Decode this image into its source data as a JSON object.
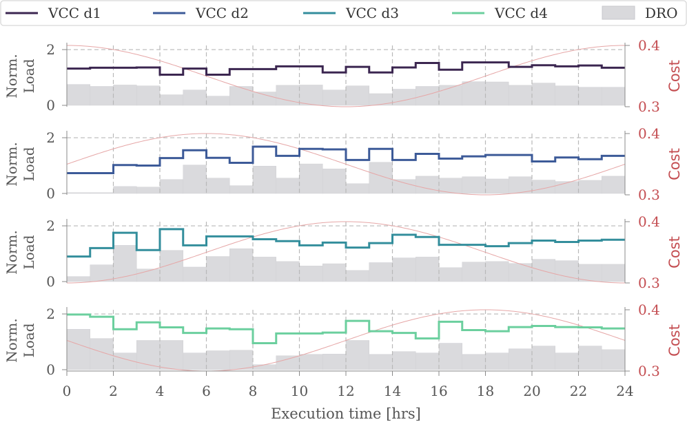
{
  "chart_data": {
    "type": "step",
    "xlabel": "Execution time [hrs]",
    "x_ticks": [
      0,
      2,
      4,
      6,
      8,
      10,
      12,
      14,
      16,
      18,
      20,
      22,
      24
    ],
    "xlim": [
      0,
      24
    ],
    "ylabel_left": [
      "Norm.",
      "Load"
    ],
    "ylabel_right": "Cost",
    "ylim_left": [
      0,
      2.1
    ],
    "y_ticks_left": [
      0,
      2
    ],
    "ylim_right": [
      0.3,
      0.4
    ],
    "y_ticks_right": [
      "0.3",
      "0.4"
    ],
    "legend": [
      {
        "label": "VCC d1",
        "color": "#3b2650",
        "kind": "line"
      },
      {
        "label": "VCC d2",
        "color": "#3c5a98",
        "kind": "line"
      },
      {
        "label": "VCC d3",
        "color": "#338e9c",
        "kind": "line"
      },
      {
        "label": "VCC d4",
        "color": "#6bcf9e",
        "kind": "line"
      },
      {
        "label": "DRO",
        "color": "#d9d9dc",
        "kind": "patch"
      }
    ],
    "cost_color": "#e6a6a6",
    "panels": [
      {
        "name": "VCC d1",
        "color": "#3b2650",
        "vcc": [
          1.32,
          1.35,
          1.35,
          1.36,
          1.1,
          1.32,
          1.1,
          1.3,
          1.3,
          1.4,
          1.4,
          1.18,
          1.38,
          1.18,
          1.36,
          1.52,
          1.28,
          1.54,
          1.54,
          1.38,
          1.44,
          1.4,
          1.43,
          1.35
        ],
        "dro": [
          0.75,
          0.68,
          0.73,
          0.7,
          0.38,
          0.55,
          0.33,
          0.68,
          0.48,
          0.72,
          0.73,
          0.55,
          0.7,
          0.42,
          0.58,
          0.68,
          0.72,
          0.85,
          0.84,
          0.72,
          0.8,
          0.7,
          0.65,
          0.65
        ],
        "cost": {
          "base": 0.35,
          "amp": 0.05,
          "phase": 0
        }
      },
      {
        "name": "VCC d2",
        "color": "#3c5a98",
        "vcc": [
          0.73,
          0.73,
          1.02,
          1.0,
          1.27,
          1.55,
          1.28,
          1.1,
          1.68,
          1.35,
          1.6,
          1.58,
          1.2,
          1.6,
          1.2,
          1.42,
          1.25,
          1.33,
          1.38,
          1.38,
          1.15,
          1.29,
          1.23,
          1.35
        ],
        "dro": [
          0.03,
          0.03,
          0.25,
          0.23,
          0.5,
          1.02,
          0.55,
          0.28,
          0.98,
          0.55,
          1.06,
          0.88,
          0.35,
          1.12,
          0.5,
          0.62,
          0.55,
          0.6,
          0.52,
          0.6,
          0.48,
          0.43,
          0.47,
          0.62
        ],
        "cost": {
          "base": 0.35,
          "amp": 0.05,
          "phase": 6
        }
      },
      {
        "name": "VCC d3",
        "color": "#338e9c",
        "vcc": [
          0.9,
          1.2,
          1.75,
          1.13,
          1.88,
          1.3,
          1.62,
          1.62,
          1.52,
          1.45,
          1.3,
          1.4,
          1.22,
          1.38,
          1.68,
          1.6,
          1.32,
          1.32,
          1.27,
          1.38,
          1.47,
          1.42,
          1.47,
          1.5
        ],
        "dro": [
          0.18,
          0.6,
          1.3,
          0.45,
          1.12,
          0.52,
          0.9,
          1.18,
          0.88,
          0.72,
          0.56,
          0.64,
          0.4,
          0.68,
          0.85,
          0.88,
          0.5,
          0.7,
          0.72,
          0.65,
          0.8,
          0.75,
          0.62,
          0.62
        ],
        "cost": {
          "base": 0.35,
          "amp": 0.05,
          "phase": 12
        }
      },
      {
        "name": "VCC d4",
        "color": "#6bcf9e",
        "vcc": [
          1.98,
          1.9,
          1.45,
          1.7,
          1.52,
          1.32,
          1.48,
          1.45,
          0.95,
          1.3,
          1.3,
          1.33,
          1.75,
          1.38,
          1.32,
          1.12,
          1.72,
          1.42,
          1.38,
          1.53,
          1.57,
          1.53,
          1.52,
          1.48
        ],
        "dro": [
          1.45,
          1.12,
          0.6,
          1.05,
          1.05,
          0.6,
          0.68,
          0.7,
          0.18,
          0.5,
          0.55,
          0.56,
          1.05,
          0.55,
          0.65,
          0.6,
          0.95,
          0.55,
          0.6,
          0.75,
          0.85,
          0.6,
          0.85,
          0.72
        ],
        "cost": {
          "base": 0.35,
          "amp": 0.05,
          "phase": 18
        }
      }
    ]
  }
}
